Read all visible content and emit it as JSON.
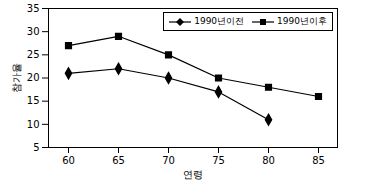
{
  "chart_data": {
    "type": "line",
    "x_label": "연령",
    "y_label": "참가율",
    "categories": [
      "60",
      "65",
      "70",
      "75",
      "80",
      "85"
    ],
    "series": [
      {
        "name": "1990년이전",
        "color": "#000000",
        "marker": "diamond",
        "values": [
          21,
          22,
          20,
          17,
          11,
          null
        ]
      },
      {
        "name": "1990년이후",
        "color": "#000000",
        "marker": "square",
        "values": [
          27,
          29,
          25,
          20,
          18,
          16
        ]
      }
    ],
    "ylim": [
      5,
      35
    ],
    "yticks": [
      5,
      10,
      15,
      20,
      25,
      30,
      35
    ],
    "legend": "top-right",
    "grid": false
  }
}
